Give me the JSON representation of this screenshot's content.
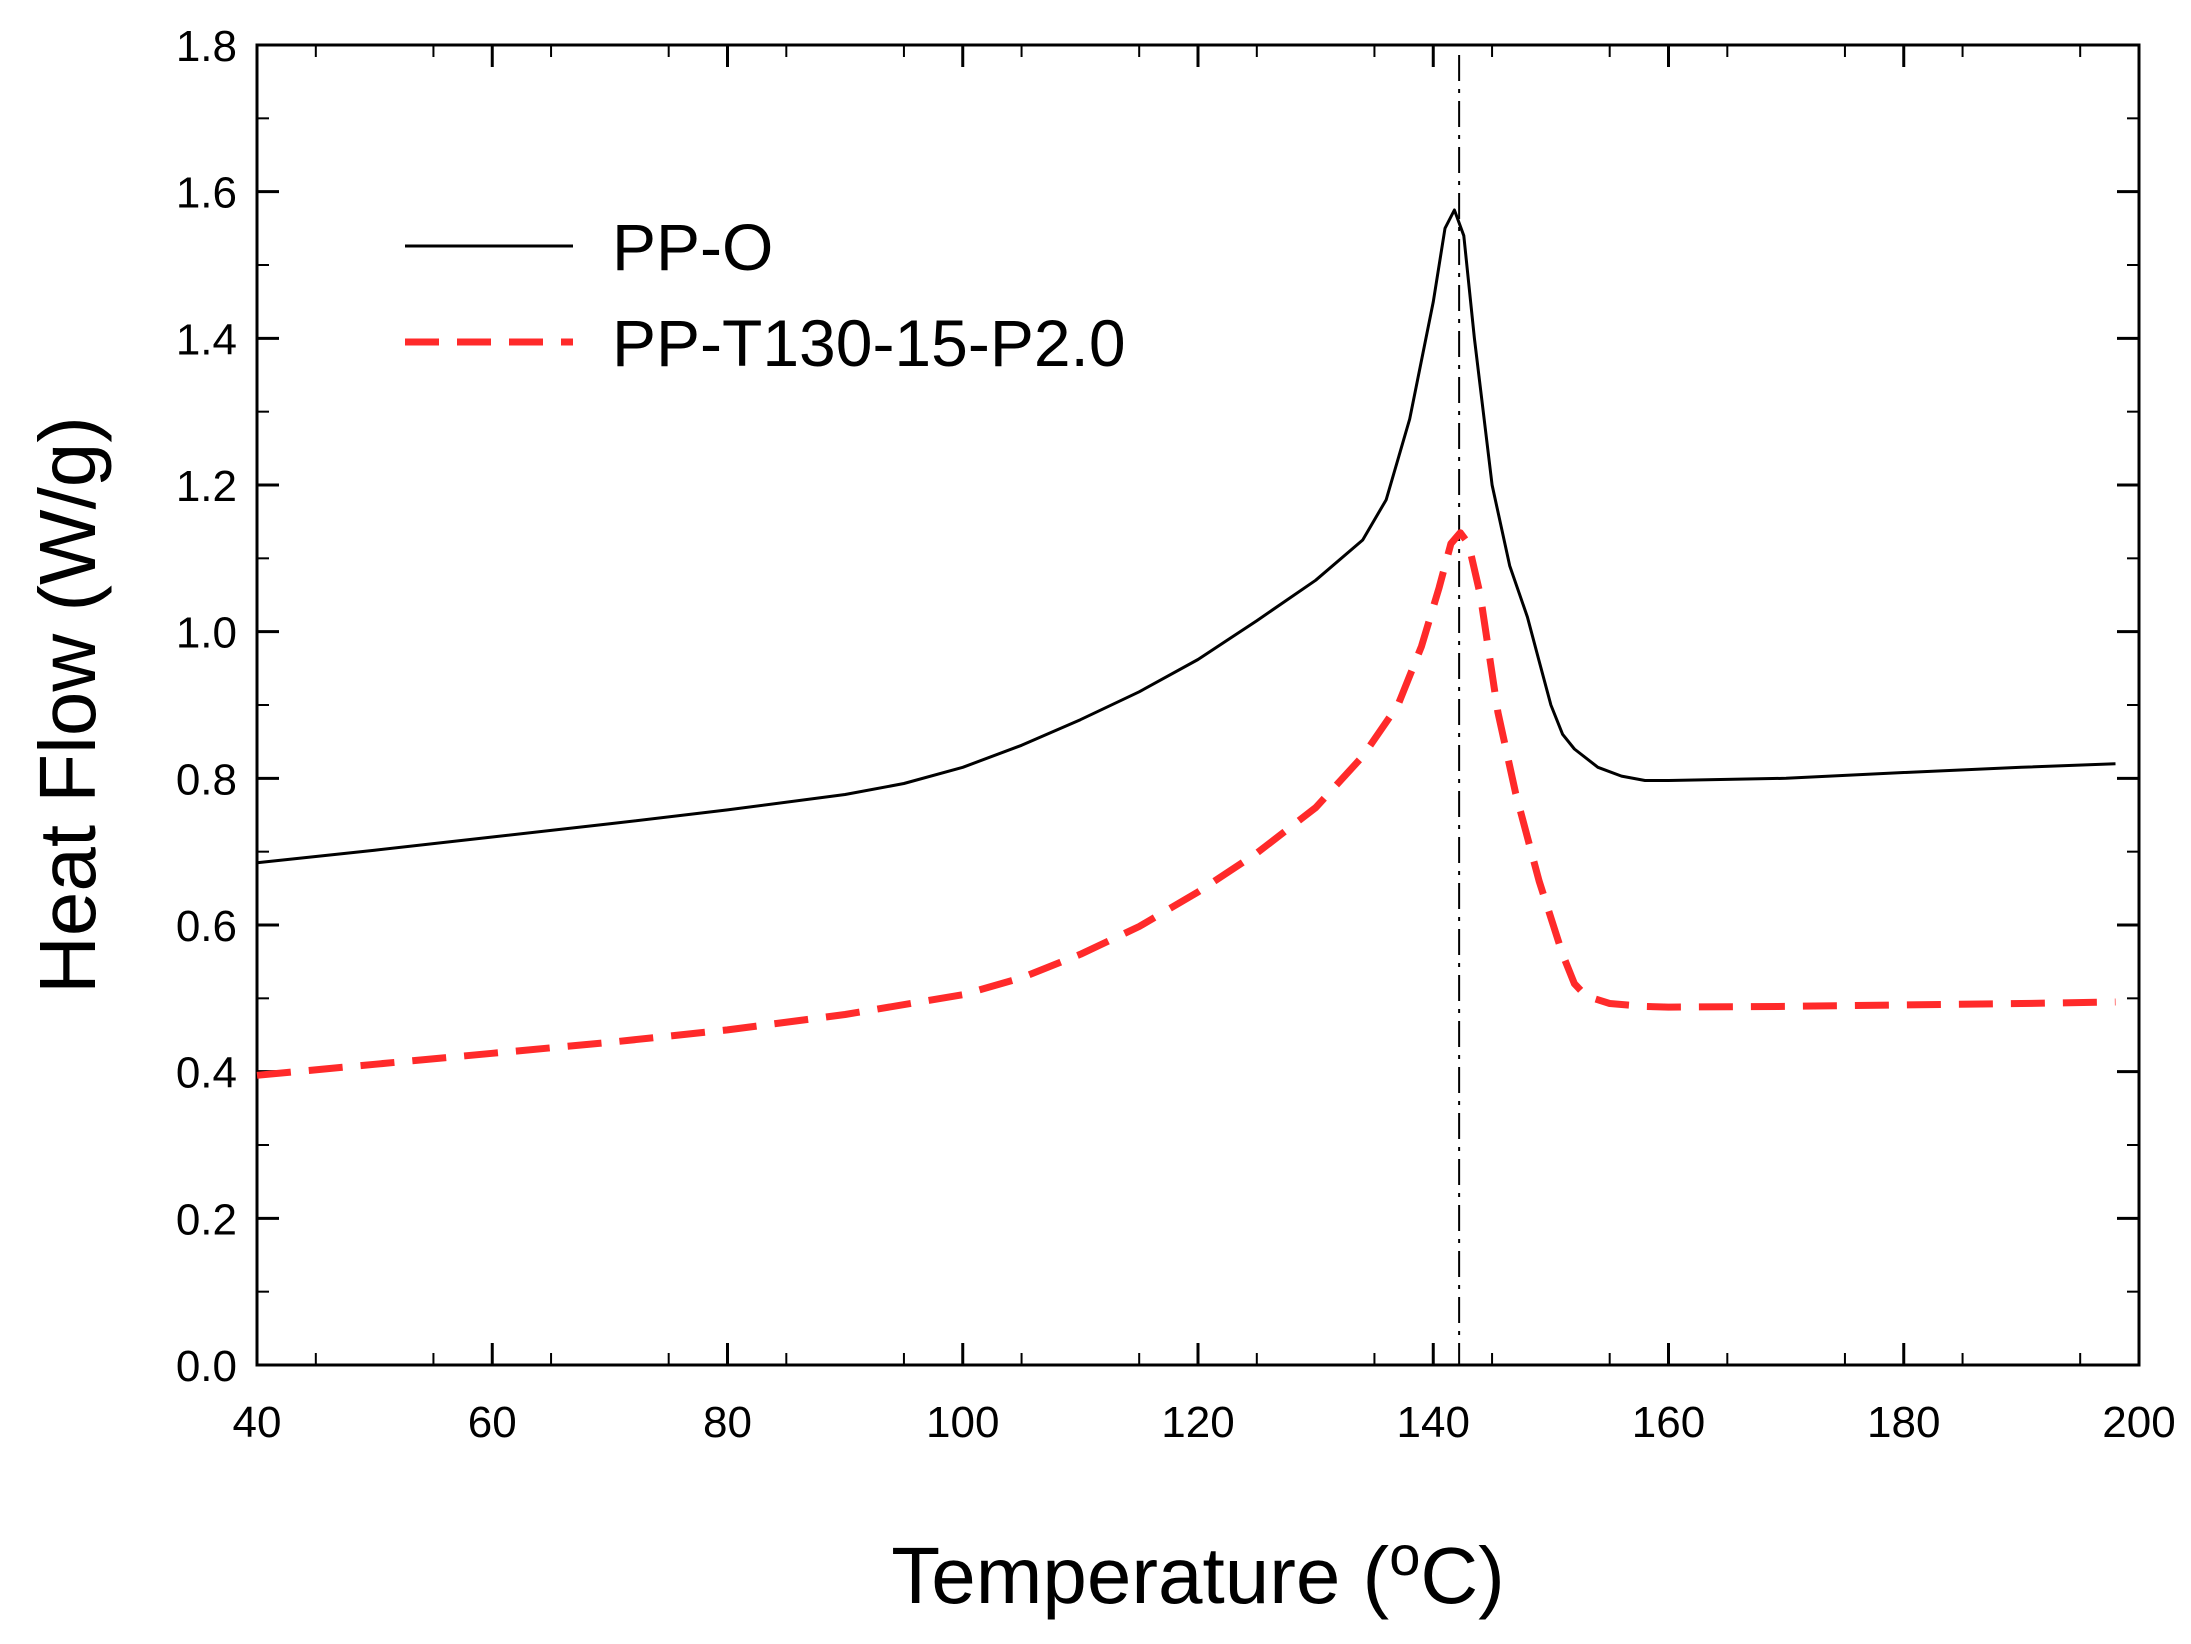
{
  "chart_data": {
    "type": "line",
    "title": "",
    "xlabel": "Temperature (",
    "xlabel_superscript": "o",
    "xlabel_suffix": "C)",
    "ylabel": "Heat Flow (W/g)",
    "xlim": [
      40,
      200
    ],
    "ylim": [
      0.0,
      1.8
    ],
    "xticks": [
      40,
      60,
      80,
      100,
      120,
      140,
      160,
      180,
      200
    ],
    "xtick_labels": [
      "40",
      "60",
      "80",
      "100",
      "120",
      "140",
      "160",
      "180",
      "200"
    ],
    "yticks": [
      0.0,
      0.2,
      0.4,
      0.6,
      0.8,
      1.0,
      1.2,
      1.4,
      1.6,
      1.8
    ],
    "ytick_labels": [
      "0.0",
      "0.2",
      "0.4",
      "0.6",
      "0.8",
      "1.0",
      "1.2",
      "1.4",
      "1.6",
      "1.8"
    ],
    "vertical_reference_x": 142.2,
    "legend_position": "top-left",
    "series": [
      {
        "name": "PP-O",
        "color": "#000000",
        "style": "solid",
        "x": [
          40,
          50,
          60,
          70,
          80,
          90,
          95,
          100,
          105,
          110,
          115,
          120,
          125,
          130,
          134,
          136,
          138,
          140,
          141,
          141.8,
          142.6,
          143.5,
          145,
          146.5,
          148,
          149,
          150,
          151,
          152,
          154,
          156,
          158,
          160,
          170,
          180,
          190,
          198
        ],
        "y": [
          0.685,
          0.702,
          0.72,
          0.738,
          0.757,
          0.778,
          0.793,
          0.815,
          0.845,
          0.88,
          0.918,
          0.962,
          1.015,
          1.07,
          1.125,
          1.18,
          1.29,
          1.45,
          1.55,
          1.575,
          1.54,
          1.4,
          1.2,
          1.09,
          1.02,
          0.96,
          0.9,
          0.86,
          0.84,
          0.815,
          0.803,
          0.797,
          0.797,
          0.8,
          0.808,
          0.815,
          0.82
        ]
      },
      {
        "name": "PP-T130-15-P2.0",
        "color": "#ff2a2a",
        "style": "dashed",
        "x": [
          40,
          50,
          60,
          70,
          80,
          90,
          100,
          105,
          110,
          115,
          120,
          125,
          130,
          134,
          137,
          139,
          140.5,
          141.5,
          142.3,
          143,
          144,
          145.5,
          147,
          149,
          151,
          152,
          153,
          155,
          158,
          160,
          170,
          180,
          190,
          198
        ],
        "y": [
          0.395,
          0.41,
          0.425,
          0.44,
          0.457,
          0.478,
          0.505,
          0.528,
          0.56,
          0.598,
          0.645,
          0.698,
          0.76,
          0.83,
          0.9,
          0.98,
          1.06,
          1.12,
          1.135,
          1.12,
          1.05,
          0.89,
          0.78,
          0.66,
          0.56,
          0.52,
          0.503,
          0.493,
          0.489,
          0.488,
          0.489,
          0.491,
          0.493,
          0.495
        ]
      }
    ]
  }
}
